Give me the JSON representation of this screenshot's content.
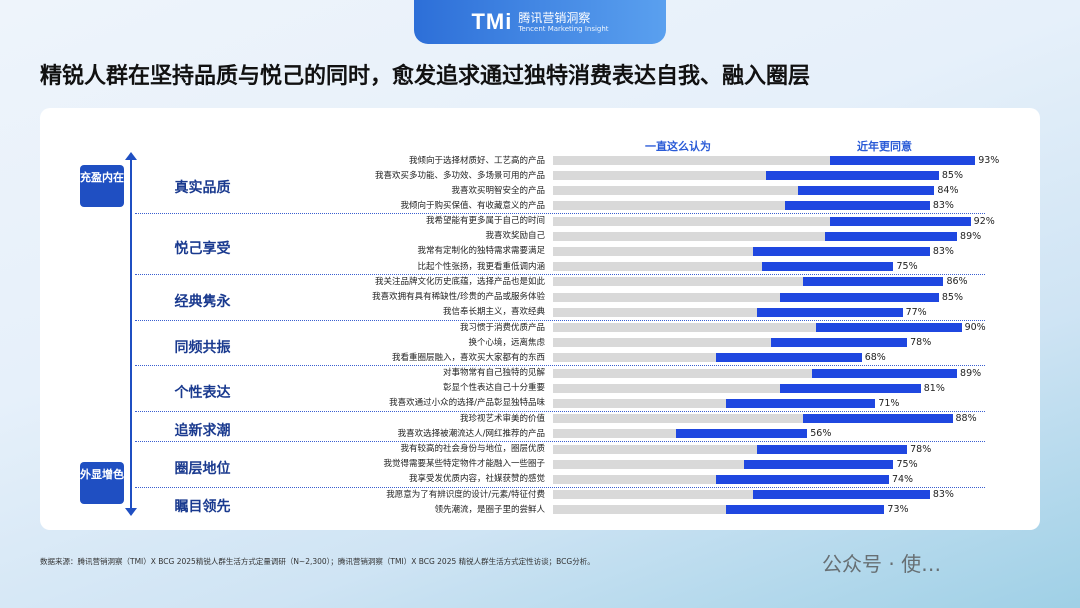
{
  "header": {
    "logo_mark": "TMi",
    "logo_cn": "腾讯营销洞察",
    "logo_en": "Tencent Marketing Insight"
  },
  "title": "精锐人群在坚持品质与悦己的同时，愈发追求通过独特消费表达自我、融入圈层",
  "axis_badges": {
    "top": "充盈内在",
    "bottom": "外显增色"
  },
  "source": "数据来源：腾讯营销洞察（TMI）X BCG 2025精锐人群生活方式定量调研（N~2,300）；腾讯营销洞察（TMI）X BCG 2025 精锐人群生活方式定性访谈；BCG分析。",
  "watermark": "公众号 · 使…",
  "colors": {
    "always": "#d9d9d9",
    "recent": "#1f47e0",
    "accent": "#1f4fc2"
  },
  "chart_data": {
    "type": "bar",
    "orientation": "horizontal-stacked",
    "legend": [
      "一直这么认为",
      "近年更同意"
    ],
    "groups": [
      {
        "name": "真实品质",
        "items": [
          {
            "label": "我倾向于选择材质好、工艺高的产品",
            "always": 61,
            "total": 93,
            "total_label": "93%"
          },
          {
            "label": "我喜欢买多功能、多功效、多场景可用的产品",
            "always": 47,
            "total": 85,
            "total_label": "85%"
          },
          {
            "label": "我喜欢买明智安全的产品",
            "always": 54,
            "total": 84,
            "total_label": "84%"
          },
          {
            "label": "我倾向于购买保值、有收藏意义的产品",
            "always": 51,
            "total": 83,
            "total_label": "83%"
          }
        ]
      },
      {
        "name": "悦己享受",
        "items": [
          {
            "label": "我希望能有更多属于自己的时间",
            "always": 61,
            "total": 92,
            "total_label": "92%"
          },
          {
            "label": "我喜欢奖励自己",
            "always": 60,
            "total": 89,
            "total_label": "89%"
          },
          {
            "label": "我常有定制化的独特需求需要满足",
            "always": 44,
            "total": 83,
            "total_label": "83%"
          },
          {
            "label": "比起个性张扬，我更看重低调内涵",
            "always": 46,
            "total": 75,
            "total_label": "75%"
          }
        ]
      },
      {
        "name": "经典隽永",
        "items": [
          {
            "label": "我关注品牌文化历史底蕴，选择产品也是如此",
            "always": 55,
            "total": 86,
            "total_label": "86%"
          },
          {
            "label": "我喜欢拥有具有稀缺性/珍贵的产品或服务体验",
            "always": 50,
            "total": 85,
            "total_label": "85%"
          },
          {
            "label": "我信奉长期主义，喜欢经典",
            "always": 45,
            "total": 77,
            "total_label": "77%"
          }
        ]
      },
      {
        "name": "同频共振",
        "items": [
          {
            "label": "我习惯于消费优质产品",
            "always": 58,
            "total": 90,
            "total_label": "90%"
          },
          {
            "label": "换个心境，远离焦虑",
            "always": 48,
            "total": 78,
            "total_label": "78%"
          },
          {
            "label": "我看重圈层融入，喜欢买大家都有的东西",
            "always": 36,
            "total": 68,
            "total_label": "68%"
          }
        ]
      },
      {
        "name": "个性表达",
        "items": [
          {
            "label": "对事物常有自己独特的见解",
            "always": 57,
            "total": 89,
            "total_label": "89%"
          },
          {
            "label": "彰显个性表达自己十分重要",
            "always": 50,
            "total": 81,
            "total_label": "81%"
          },
          {
            "label": "我喜欢通过小众的选择/产品彰显独特品味",
            "always": 38,
            "total": 71,
            "total_label": "71%"
          }
        ]
      },
      {
        "name": "追新求潮",
        "items": [
          {
            "label": "我珍视艺术审美的价值",
            "always": 55,
            "total": 88,
            "total_label": "88%"
          },
          {
            "label": "我喜欢选择被潮流达人/网红推荐的产品",
            "always": 27,
            "total": 56,
            "total_label": "56%"
          }
        ]
      },
      {
        "name": "圈层地位",
        "items": [
          {
            "label": "我有较高的社会身份与地位，圈层优质",
            "always": 45,
            "total": 78,
            "total_label": "78%"
          },
          {
            "label": "我觉得需要某些特定物件才能融入一些圈子",
            "always": 42,
            "total": 75,
            "total_label": "75%"
          },
          {
            "label": "我享受发优质内容，社媒获赞的感觉",
            "always": 36,
            "total": 74,
            "total_label": "74%"
          }
        ]
      },
      {
        "name": "瞩目领先",
        "items": [
          {
            "label": "我愿意为了有辨识度的设计/元素/特征付费",
            "always": 44,
            "total": 83,
            "total_label": "83%"
          },
          {
            "label": "领先潮流，是圈子里的尝鲜人",
            "always": 38,
            "total": 73,
            "total_label": "73%"
          }
        ]
      }
    ]
  }
}
